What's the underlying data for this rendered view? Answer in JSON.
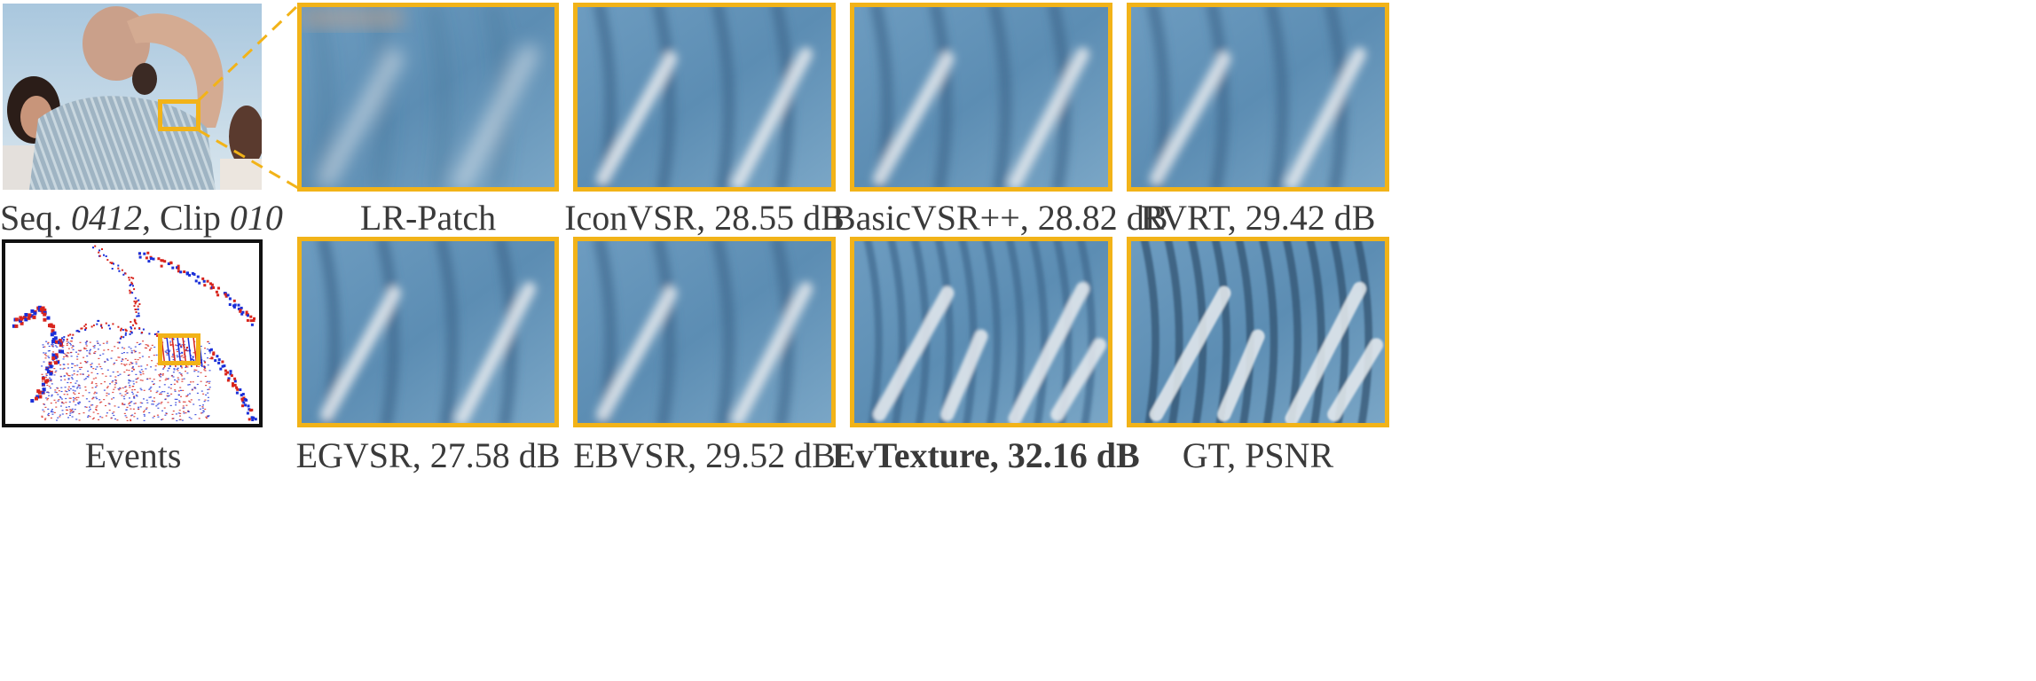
{
  "figure": {
    "scene_caption": {
      "prefix": "Seq. ",
      "seq": "0412",
      "mid": ", Clip ",
      "clip": "010"
    },
    "events_caption": "Events",
    "panels": [
      {
        "id": "lr",
        "label": "LR-Patch",
        "bold": false,
        "style": "blur"
      },
      {
        "id": "iconvsr",
        "label": "IconVSR, 28.55 dB",
        "bold": false,
        "style": "soft"
      },
      {
        "id": "basicvsr",
        "label": "BasicVSR++, 28.82 dB",
        "bold": false,
        "style": "soft"
      },
      {
        "id": "rvrt",
        "label": "RVRT, 29.42 dB",
        "bold": false,
        "style": "soft"
      },
      {
        "id": "egvsr",
        "label": "EGVSR, 27.58 dB",
        "bold": false,
        "style": "soft"
      },
      {
        "id": "ebvsr",
        "label": "EBVSR, 29.52 dB",
        "bold": false,
        "style": "soft"
      },
      {
        "id": "evtexture",
        "label": "EvTexture, 32.16 dB",
        "bold": true,
        "style": "sharp"
      },
      {
        "id": "gt",
        "label": "GT, PSNR",
        "bold": false,
        "style": "gt"
      }
    ]
  },
  "colors": {
    "highlight": "#f2b318",
    "fabric_base": "#5c8db3",
    "stripe_light": "#e8ecef",
    "event_pos": "#d8241c",
    "event_neg": "#1a2fd8"
  }
}
